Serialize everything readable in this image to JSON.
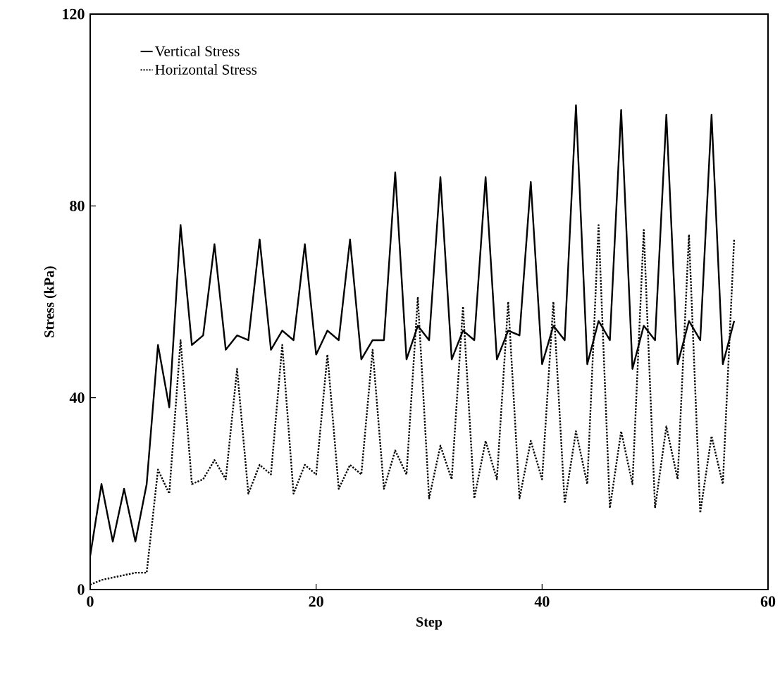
{
  "chart_data": {
    "type": "line",
    "xlabel": "Step",
    "ylabel": "Stress (kPa)",
    "x": [
      0,
      1,
      2,
      3,
      4,
      5,
      6,
      7,
      8,
      9,
      10,
      11,
      12,
      13,
      14,
      15,
      16,
      17,
      18,
      19,
      20,
      21,
      22,
      23,
      24,
      25,
      26,
      27,
      28,
      29,
      30,
      31,
      32,
      33,
      34,
      35,
      36,
      37,
      38,
      39,
      40,
      41,
      42,
      43,
      44,
      45,
      46,
      47,
      48,
      49,
      50,
      51,
      52,
      53,
      54,
      55,
      56,
      57
    ],
    "series": [
      {
        "name": "Vertical Stress",
        "color": "#000000",
        "line_style": "solid",
        "values": [
          7,
          22,
          10,
          21,
          10,
          22,
          51,
          38,
          76,
          51,
          53,
          72,
          50,
          53,
          52,
          73,
          50,
          54,
          52,
          72,
          49,
          54,
          52,
          73,
          48,
          52,
          52,
          87,
          48,
          55,
          52,
          86,
          48,
          54,
          52,
          86,
          48,
          54,
          53,
          85,
          47,
          55,
          52,
          101,
          47,
          56,
          52,
          100,
          46,
          55,
          52,
          99,
          47,
          56,
          52,
          99,
          47,
          56
        ]
      },
      {
        "name": "Horizontal Stress",
        "color": "#000000",
        "line_style": "dotted",
        "values": [
          1,
          2,
          2.5,
          3,
          3.5,
          3.5,
          25,
          20,
          52,
          22,
          23,
          27,
          23,
          46,
          20,
          26,
          24,
          51,
          20,
          26,
          24,
          49,
          21,
          26,
          24,
          50,
          21,
          29,
          24,
          61,
          19,
          30,
          23,
          59,
          19,
          31,
          23,
          60,
          19,
          31,
          23,
          60,
          18,
          33,
          22,
          76,
          17,
          33,
          22,
          75,
          17,
          34,
          23,
          74,
          16,
          32,
          22,
          73
        ]
      }
    ],
    "xlim": [
      0,
      60
    ],
    "ylim": [
      0,
      120
    ],
    "xticks": [
      0,
      20,
      40,
      60
    ],
    "yticks": [
      0,
      40,
      80,
      120
    ],
    "grid": false,
    "legend": "top left",
    "marker": "none"
  }
}
